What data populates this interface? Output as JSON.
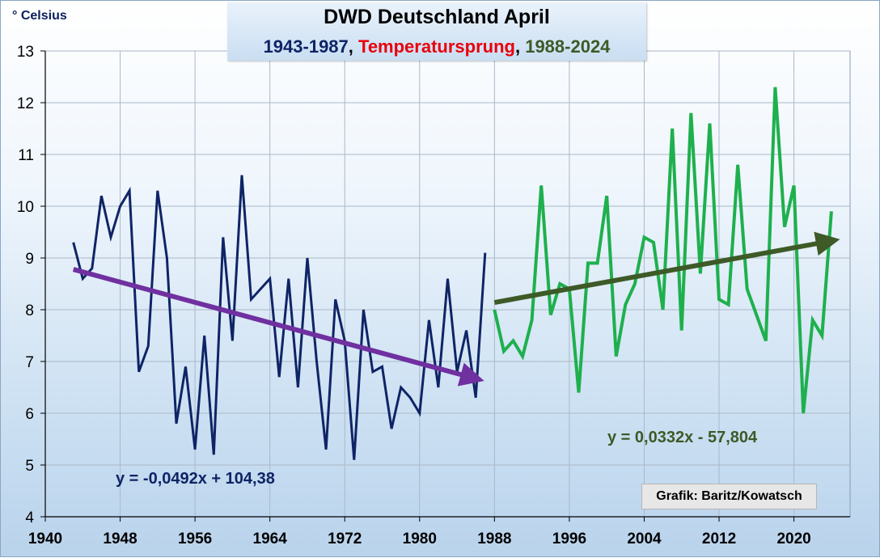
{
  "title": {
    "main": "DWD Deutschland April",
    "sub_part1": "1943-1987",
    "sep1": ", ",
    "sub_part2": "Temperatursprung",
    "sep2": ", ",
    "sub_part3": "1988-2024"
  },
  "unit_label": "° Celsius",
  "credit": "Grafik: Baritz/Kowatsch",
  "colors": {
    "series1": "#0f2466",
    "series2": "#1eb04d",
    "trend1": "#7030a0",
    "trend2": "#3d5a27",
    "title_blue": "#0f2466",
    "title_red": "#e8000b",
    "title_green": "#3d5a27",
    "grid": "#aab8c8"
  },
  "chart_data": {
    "type": "line",
    "title": "DWD Deutschland April",
    "xlabel": "",
    "ylabel": "° Celsius",
    "xlim": [
      1940,
      2026
    ],
    "ylim": [
      4,
      13
    ],
    "xticks": [
      1940,
      1948,
      1956,
      1964,
      1972,
      1980,
      1988,
      1996,
      2004,
      2012,
      2020
    ],
    "yticks": [
      4,
      5,
      6,
      7,
      8,
      9,
      10,
      11,
      12,
      13
    ],
    "grid": true,
    "series": [
      {
        "name": "1943-1987",
        "x": [
          1943,
          1944,
          1945,
          1946,
          1947,
          1948,
          1949,
          1950,
          1951,
          1952,
          1953,
          1954,
          1955,
          1956,
          1957,
          1958,
          1959,
          1960,
          1961,
          1962,
          1963,
          1964,
          1965,
          1966,
          1967,
          1968,
          1969,
          1970,
          1971,
          1972,
          1973,
          1974,
          1975,
          1976,
          1977,
          1978,
          1979,
          1980,
          1981,
          1982,
          1983,
          1984,
          1985,
          1986,
          1987
        ],
        "values": [
          9.3,
          8.6,
          8.8,
          10.2,
          9.4,
          10.0,
          10.3,
          6.8,
          7.3,
          10.3,
          9.0,
          5.8,
          6.9,
          5.3,
          7.5,
          5.2,
          9.4,
          7.4,
          10.6,
          8.2,
          8.4,
          8.6,
          6.7,
          8.6,
          6.5,
          9.0,
          7.0,
          5.3,
          8.2,
          7.4,
          5.1,
          8.0,
          6.8,
          6.9,
          5.7,
          6.5,
          6.3,
          6.0,
          7.8,
          6.5,
          8.6,
          6.8,
          7.6,
          6.3,
          9.1
        ]
      },
      {
        "name": "1988-2024",
        "x": [
          1988,
          1989,
          1990,
          1991,
          1992,
          1993,
          1994,
          1995,
          1996,
          1997,
          1998,
          1999,
          2000,
          2001,
          2002,
          2003,
          2004,
          2005,
          2006,
          2007,
          2008,
          2009,
          2010,
          2011,
          2012,
          2013,
          2014,
          2015,
          2016,
          2017,
          2018,
          2019,
          2020,
          2021,
          2022,
          2023,
          2024
        ],
        "values": [
          8.0,
          7.2,
          7.4,
          7.1,
          7.8,
          10.4,
          7.9,
          8.5,
          8.4,
          6.4,
          8.9,
          8.9,
          10.2,
          7.1,
          8.1,
          8.5,
          9.4,
          9.3,
          8.0,
          11.5,
          7.6,
          11.8,
          8.7,
          11.6,
          8.2,
          8.1,
          10.8,
          8.4,
          7.9,
          7.4,
          12.3,
          9.6,
          10.4,
          6.0,
          7.8,
          7.5,
          9.9
        ]
      }
    ],
    "trendlines": [
      {
        "name": "trend 1943-1987",
        "label": "y = -0,0492x + 104,38",
        "x": [
          1943,
          1986
        ],
        "values": [
          8.78,
          6.67
        ]
      },
      {
        "name": "trend 1988-2024",
        "label": "y = 0,0332x - 57,804",
        "x": [
          1988,
          2024
        ],
        "values": [
          8.14,
          9.33
        ]
      }
    ],
    "annotations": [
      "y = -0,0492x + 104,38",
      "y = 0,0332x - 57,804",
      "Grafik: Baritz/Kowatsch"
    ]
  }
}
